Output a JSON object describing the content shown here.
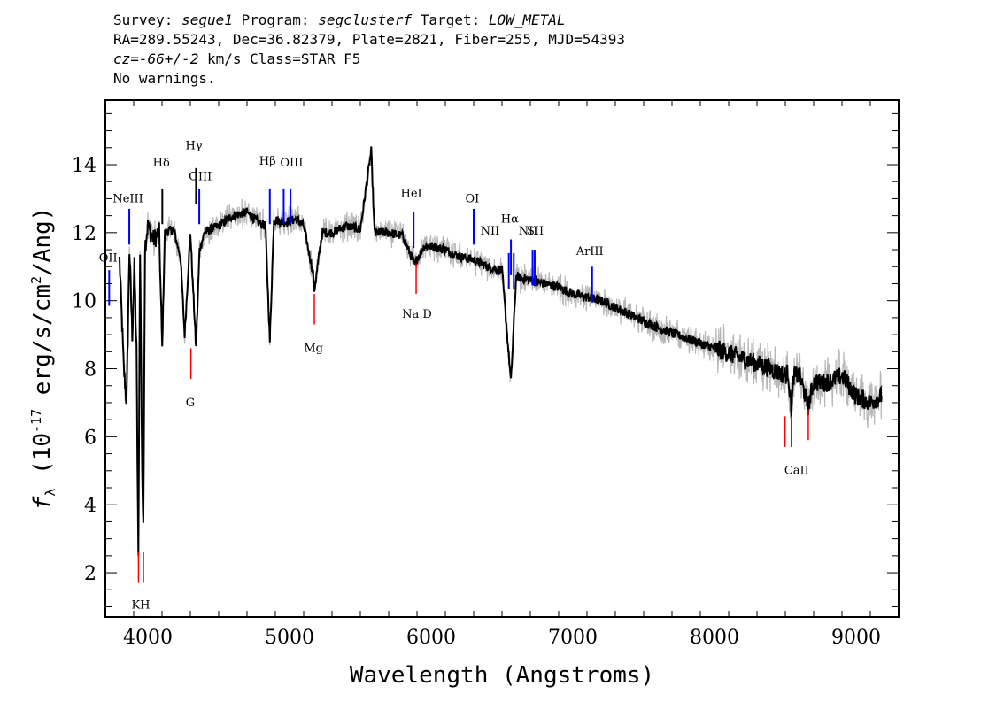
{
  "header": {
    "survey_label": "Survey: ",
    "survey": "segue1",
    "program_label": " Program: ",
    "program": "segclusterf",
    "target_label": " Target: ",
    "target": "LOW_METAL",
    "line2": "RA=289.55243, Dec=36.82379, Plate=2821, Fiber=255, MJD=54393",
    "cz_label": "cz",
    "cz_value": "=-66+/-2",
    "cz_rest": " km/s Class=STAR F5",
    "line4": "No warnings."
  },
  "chart_data": {
    "type": "line",
    "xlabel": "Wavelength (Angstroms)",
    "ylabel": "f_λ (10^-17 erg/s/cm^2/Ang)",
    "xlim": [
      3700,
      9300
    ],
    "ylim": [
      0.7,
      15.9
    ],
    "x_ticks": [
      4000,
      5000,
      6000,
      7000,
      8000,
      9000
    ],
    "y_ticks": [
      2,
      4,
      6,
      8,
      10,
      12,
      14
    ],
    "grid": false,
    "colors": {
      "spectrum": "#000000",
      "error": "#b8b8b8",
      "emission": "#0000ff",
      "absorption": "#ff0000",
      "neutral": "#000000"
    },
    "spectrum_keypoints": [
      [
        3800,
        11.2
      ],
      [
        3830,
        8.0
      ],
      [
        3850,
        7.0
      ],
      [
        3870,
        11.5
      ],
      [
        3890,
        9.0
      ],
      [
        3905,
        11.0
      ],
      [
        3920,
        8.5
      ],
      [
        3933,
        2.3
      ],
      [
        3945,
        11.6
      ],
      [
        3960,
        5.0
      ],
      [
        3968,
        3.2
      ],
      [
        3980,
        11.6
      ],
      [
        4000,
        12.2
      ],
      [
        4040,
        11.8
      ],
      [
        4080,
        12.0
      ],
      [
        4101,
        8.6
      ],
      [
        4120,
        12.0
      ],
      [
        4180,
        12.1
      ],
      [
        4230,
        11.3
      ],
      [
        4260,
        9.0
      ],
      [
        4300,
        12.0
      ],
      [
        4320,
        10.3
      ],
      [
        4340,
        8.6
      ],
      [
        4365,
        11.5
      ],
      [
        4400,
        12.0
      ],
      [
        4500,
        12.2
      ],
      [
        4600,
        12.5
      ],
      [
        4700,
        12.6
      ],
      [
        4780,
        12.3
      ],
      [
        4830,
        12.2
      ],
      [
        4861,
        8.8
      ],
      [
        4890,
        12.4
      ],
      [
        4960,
        12.3
      ],
      [
        5050,
        12.4
      ],
      [
        5100,
        12.2
      ],
      [
        5167,
        10.8
      ],
      [
        5175,
        10.3
      ],
      [
        5185,
        10.6
      ],
      [
        5230,
        12.0
      ],
      [
        5300,
        12.0
      ],
      [
        5400,
        12.2
      ],
      [
        5500,
        12.1
      ],
      [
        5577,
        14.4
      ],
      [
        5600,
        12.0
      ],
      [
        5700,
        12.0
      ],
      [
        5800,
        11.9
      ],
      [
        5890,
        11.0
      ],
      [
        5896,
        11.2
      ],
      [
        5950,
        11.6
      ],
      [
        6000,
        11.6
      ],
      [
        6100,
        11.5
      ],
      [
        6200,
        11.3
      ],
      [
        6300,
        11.2
      ],
      [
        6400,
        11.0
      ],
      [
        6500,
        10.9
      ],
      [
        6563,
        7.6
      ],
      [
        6600,
        10.7
      ],
      [
        6700,
        10.6
      ],
      [
        6800,
        10.5
      ],
      [
        6900,
        10.4
      ],
      [
        7000,
        10.2
      ],
      [
        7200,
        10.0
      ],
      [
        7400,
        9.6
      ],
      [
        7600,
        9.2
      ],
      [
        7800,
        8.9
      ],
      [
        8000,
        8.6
      ],
      [
        8200,
        8.3
      ],
      [
        8400,
        8.0
      ],
      [
        8498,
        7.8
      ],
      [
        8520,
        7.9
      ],
      [
        8542,
        6.8
      ],
      [
        8560,
        7.8
      ],
      [
        8600,
        7.8
      ],
      [
        8662,
        6.9
      ],
      [
        8700,
        7.6
      ],
      [
        8800,
        7.6
      ],
      [
        8900,
        7.8
      ],
      [
        9000,
        7.2
      ],
      [
        9100,
        7.0
      ],
      [
        9180,
        7.2
      ]
    ],
    "emission_lines": [
      {
        "label": "OII",
        "x": 3727,
        "y": 10.9
      },
      {
        "label": "NeIII",
        "x": 3869,
        "y": 12.7
      },
      {
        "label": "Hδ",
        "x": 4102,
        "y": 13.3
      },
      {
        "label": "Hγ",
        "x": 4340,
        "y": 13.9
      },
      {
        "label": "OIII",
        "x": 4363,
        "y": 13.3
      },
      {
        "label": "Hβ",
        "x": 4861,
        "y": 13.3
      },
      {
        "label": "OIII",
        "x": 4959,
        "y": 13.3
      },
      {
        "label": "OIII",
        "x": 5007,
        "y": 13.3
      },
      {
        "label": "HeI",
        "x": 5876,
        "y": 12.6
      },
      {
        "label": "OI",
        "x": 6300,
        "y": 12.7
      },
      {
        "label": "NII",
        "x": 6548,
        "y": 11.4
      },
      {
        "label": "Hα",
        "x": 6563,
        "y": 11.8
      },
      {
        "label": "NII",
        "x": 6583,
        "y": 11.4
      },
      {
        "label": "SII",
        "x": 6716,
        "y": 11.5
      },
      {
        "label": "SII",
        "x": 6731,
        "y": 11.5
      },
      {
        "label": "ArIII",
        "x": 7136,
        "y": 11.0
      }
    ],
    "absorption_lines": [
      {
        "label": "K",
        "x": 3934,
        "y": 1.7
      },
      {
        "label": "H",
        "x": 3969,
        "y": 1.7
      },
      {
        "label": "G",
        "x": 4304,
        "y": 7.7
      },
      {
        "label": "Mg",
        "x": 5175,
        "y": 9.3
      },
      {
        "label": "Na",
        "x": 5894,
        "y": 10.2
      },
      {
        "label": "CaII",
        "x": 8498,
        "y": 5.7
      },
      {
        "label": "CaII",
        "x": 8542,
        "y": 5.7
      },
      {
        "label": "CaII",
        "x": 8662,
        "y": 5.9
      }
    ],
    "text_labels": [
      {
        "text": "OII",
        "x": 3720,
        "y": 11.15
      },
      {
        "text": "NeIII",
        "x": 3860,
        "y": 12.9
      },
      {
        "text": "Hδ",
        "x": 4095,
        "y": 13.95
      },
      {
        "text": "Hγ",
        "x": 4325,
        "y": 14.45
      },
      {
        "text": "OIII",
        "x": 4370,
        "y": 13.55
      },
      {
        "text": "Hβ",
        "x": 4845,
        "y": 14.0
      },
      {
        "text": "OIII",
        "x": 5015,
        "y": 13.95
      },
      {
        "text": "HeI",
        "x": 5860,
        "y": 13.05
      },
      {
        "text": "OI",
        "x": 6290,
        "y": 12.9
      },
      {
        "text": "NII",
        "x": 6415,
        "y": 11.95
      },
      {
        "text": "Hα",
        "x": 6555,
        "y": 12.3
      },
      {
        "text": "NII",
        "x": 6685,
        "y": 11.95
      },
      {
        "text": "SII",
        "x": 6735,
        "y": 11.95
      },
      {
        "text": "ArIII",
        "x": 7120,
        "y": 11.35
      },
      {
        "text": "KH",
        "x": 3950,
        "y": 0.95
      },
      {
        "text": "G",
        "x": 4300,
        "y": 6.9
      },
      {
        "text": "Mg",
        "x": 5170,
        "y": 8.5
      },
      {
        "text": "Na D",
        "x": 5900,
        "y": 9.5
      },
      {
        "text": "CaII",
        "x": 8580,
        "y": 4.9
      }
    ]
  }
}
